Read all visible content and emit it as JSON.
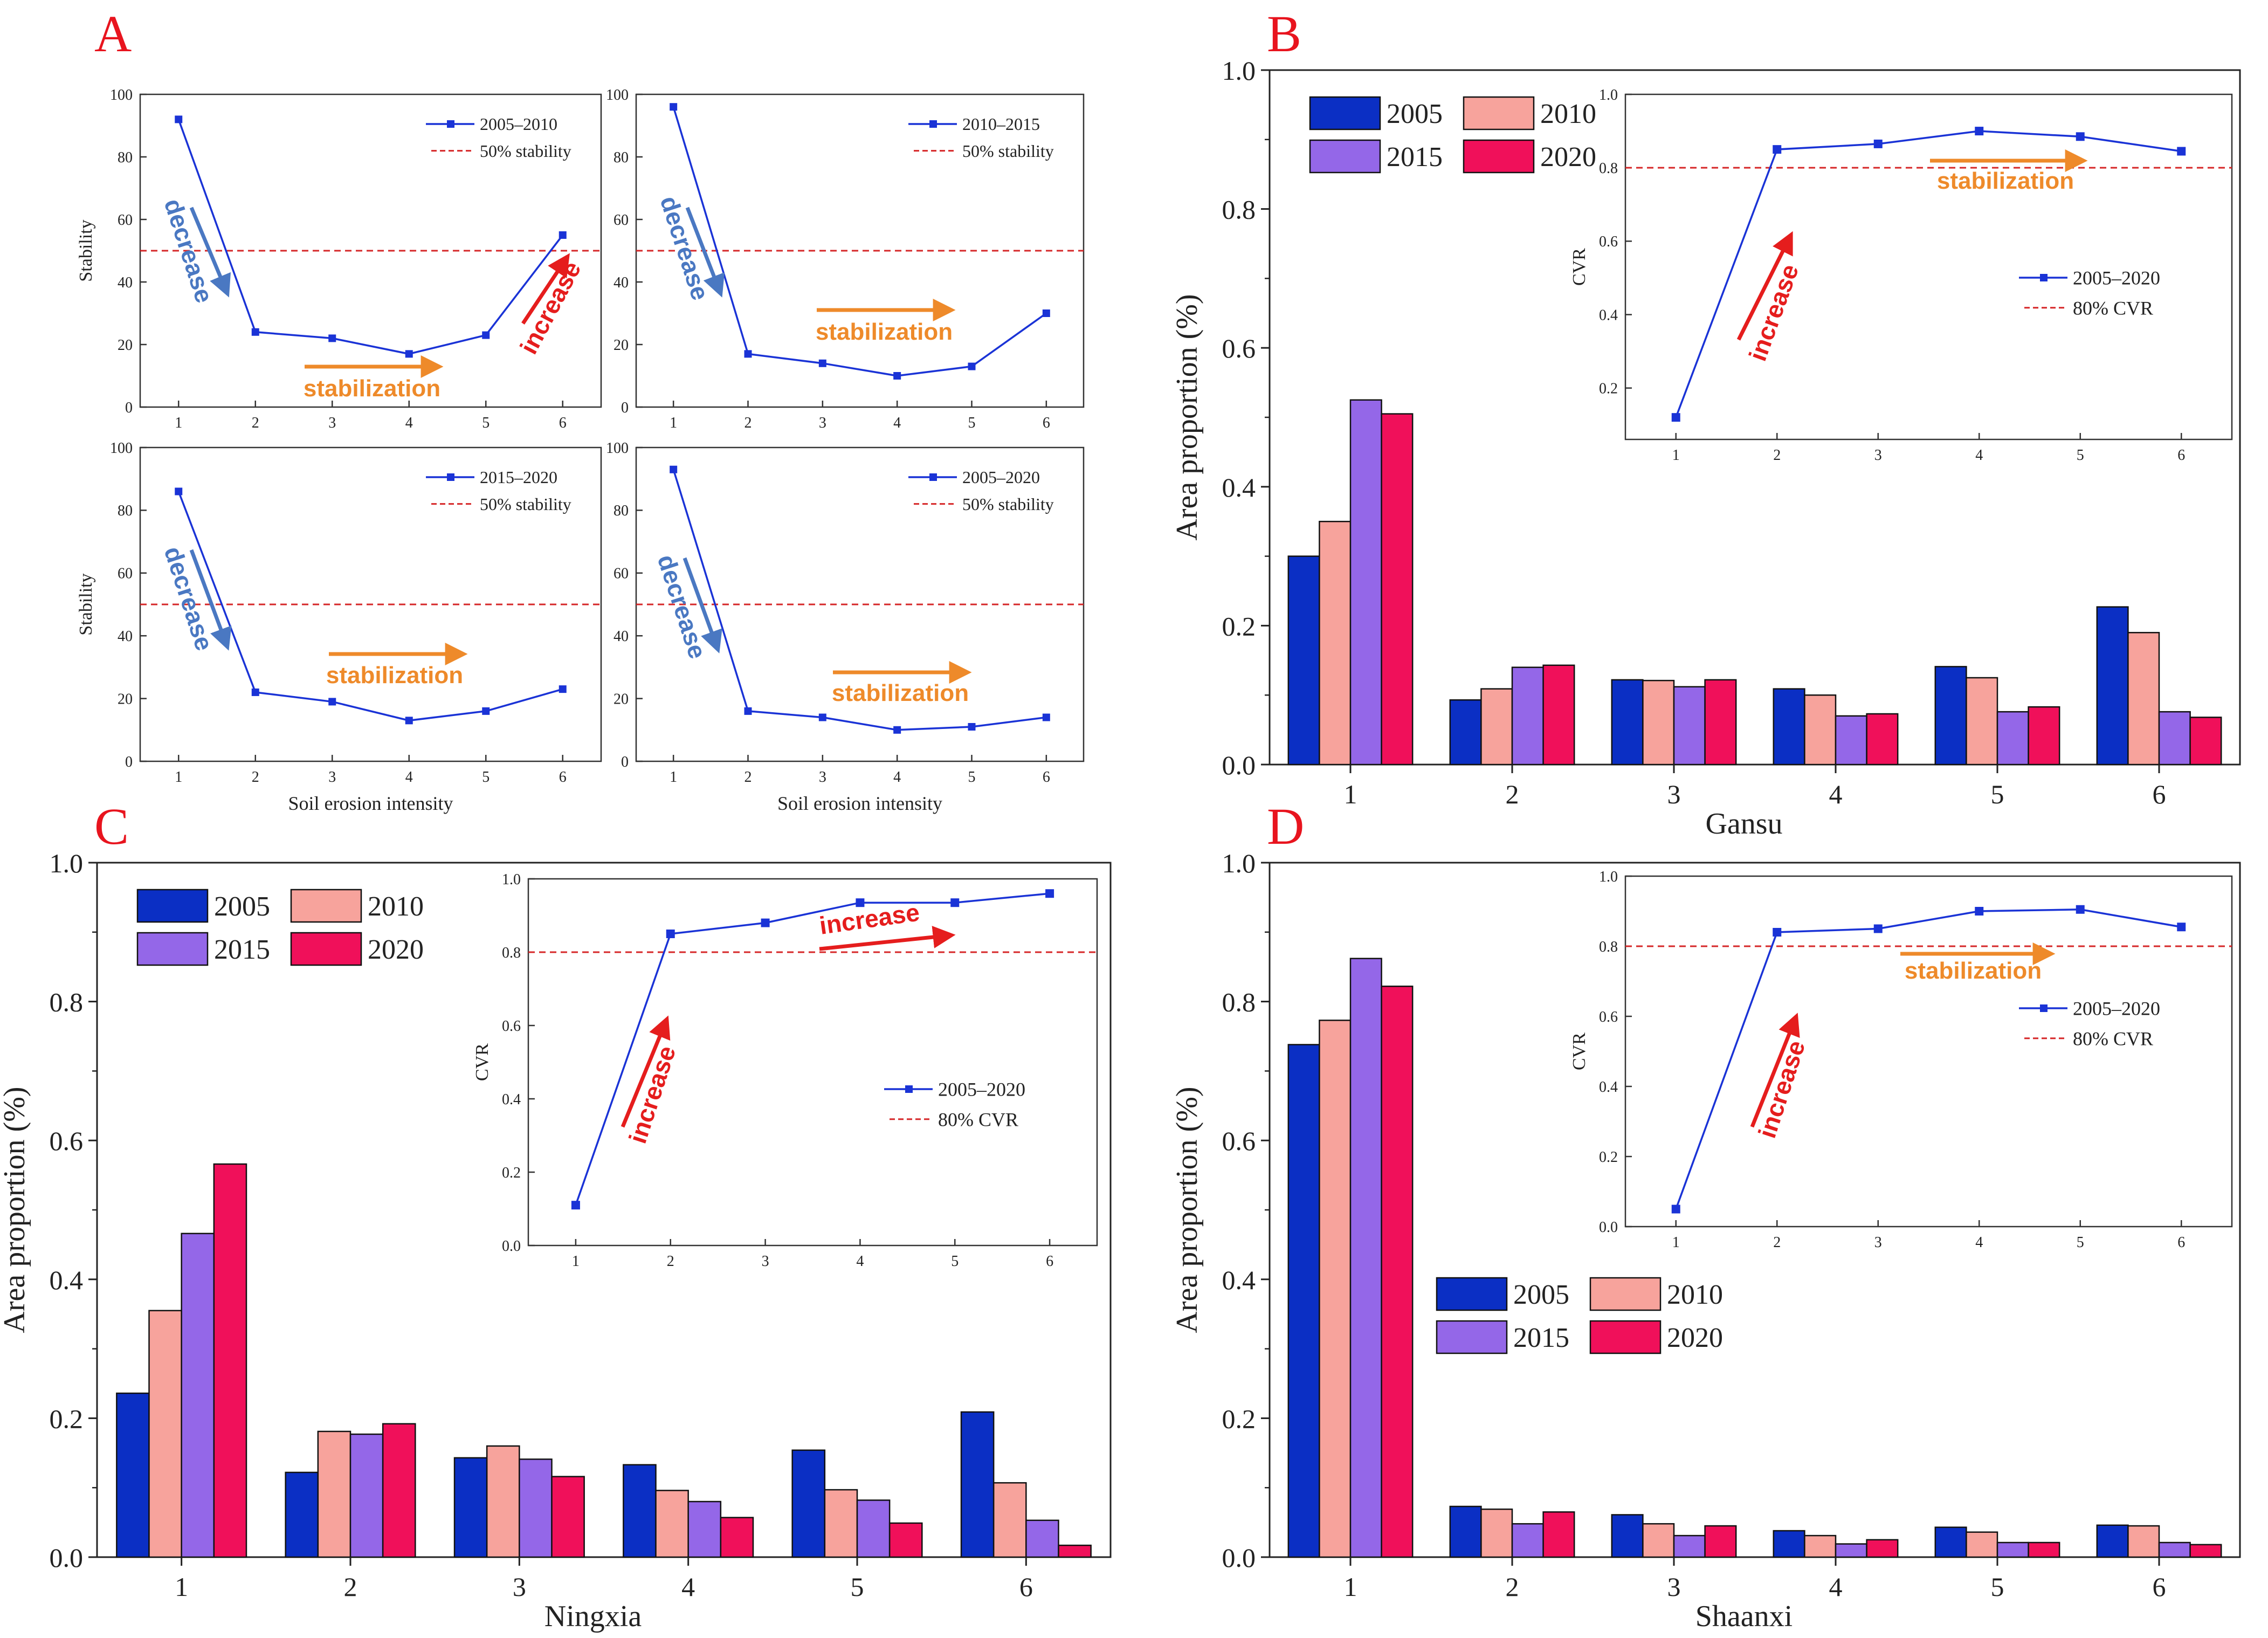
{
  "colors": {
    "s2005": "#0b2fc4",
    "s2010": "#f7a39c",
    "s2015": "#9467e8",
    "s2020": "#f0105a",
    "line": "#1a33d6",
    "ref": "#d62728",
    "panel_letter": "#e8141e",
    "arrow_blue": "#4a78c2",
    "arrow_orange": "#ee8a2a",
    "arrow_red": "#e51d1d"
  },
  "panel_letters": {
    "A": "A",
    "B": "B",
    "C": "C",
    "D": "D"
  },
  "chart_data": [
    {
      "id": "A1",
      "type": "line",
      "panel": "A",
      "x": [
        1,
        2,
        3,
        4,
        5,
        6
      ],
      "y": [
        92,
        24,
        22,
        17,
        23,
        55
      ],
      "series_name": "2005–2010",
      "ref_value": 50,
      "ref_label": "50% stability",
      "ylabel": "Stability",
      "xlabel": "",
      "ylim": [
        0,
        100
      ],
      "yticks": [
        0,
        20,
        40,
        60,
        80,
        100
      ],
      "xticks": [
        "1",
        "2",
        "3",
        "4",
        "5",
        "6"
      ],
      "annotations": [
        "decrease",
        "stabilization",
        "increase"
      ]
    },
    {
      "id": "A2",
      "type": "line",
      "panel": "A",
      "x": [
        1,
        2,
        3,
        4,
        5,
        6
      ],
      "y": [
        96,
        17,
        14,
        10,
        13,
        30
      ],
      "series_name": "2010–2015",
      "ref_value": 50,
      "ref_label": "50% stability",
      "ylabel": "",
      "xlabel": "",
      "ylim": [
        0,
        100
      ],
      "yticks": [
        0,
        20,
        40,
        60,
        80,
        100
      ],
      "xticks": [
        "1",
        "2",
        "3",
        "4",
        "5",
        "6"
      ],
      "annotations": [
        "decrease",
        "stabilization"
      ]
    },
    {
      "id": "A3",
      "type": "line",
      "panel": "A",
      "x": [
        1,
        2,
        3,
        4,
        5,
        6
      ],
      "y": [
        86,
        22,
        19,
        13,
        16,
        23
      ],
      "series_name": "2015–2020",
      "ref_value": 50,
      "ref_label": "50% stability",
      "ylabel": "Stability",
      "xlabel": "Soil erosion intensity",
      "ylim": [
        0,
        100
      ],
      "yticks": [
        0,
        20,
        40,
        60,
        80,
        100
      ],
      "xticks": [
        "1",
        "2",
        "3",
        "4",
        "5",
        "6"
      ],
      "annotations": [
        "decrease",
        "stabilization"
      ]
    },
    {
      "id": "A4",
      "type": "line",
      "panel": "A",
      "x": [
        1,
        2,
        3,
        4,
        5,
        6
      ],
      "y": [
        93,
        16,
        14,
        10,
        11,
        14
      ],
      "series_name": "2005–2020",
      "ref_value": 50,
      "ref_label": "50% stability",
      "ylabel": "",
      "xlabel": "Soil erosion intensity",
      "ylim": [
        0,
        100
      ],
      "yticks": [
        0,
        20,
        40,
        60,
        80,
        100
      ],
      "xticks": [
        "1",
        "2",
        "3",
        "4",
        "5",
        "6"
      ],
      "annotations": [
        "decrease",
        "stabilization"
      ]
    },
    {
      "id": "B",
      "type": "bar",
      "panel": "B",
      "categories": [
        "1",
        "2",
        "3",
        "4",
        "5",
        "6"
      ],
      "series": [
        {
          "name": "2005",
          "values": [
            0.3,
            0.093,
            0.122,
            0.109,
            0.141,
            0.227
          ]
        },
        {
          "name": "2010",
          "values": [
            0.35,
            0.109,
            0.121,
            0.1,
            0.125,
            0.19
          ]
        },
        {
          "name": "2015",
          "values": [
            0.525,
            0.14,
            0.112,
            0.07,
            0.076,
            0.076
          ]
        },
        {
          "name": "2020",
          "values": [
            0.505,
            0.143,
            0.122,
            0.073,
            0.083,
            0.068
          ]
        }
      ],
      "ylabel": "Area proportion (%)",
      "xlabel": "Gansu",
      "ylim": [
        0,
        1
      ],
      "yticks": [
        "0.0",
        "0.2",
        "0.4",
        "0.6",
        "0.8",
        "1.0"
      ],
      "legend": "top-left",
      "inset": {
        "type": "line",
        "x": [
          1,
          2,
          3,
          4,
          5,
          6
        ],
        "y": [
          0.12,
          0.85,
          0.865,
          0.9,
          0.885,
          0.845
        ],
        "series_name": "2005–2020",
        "ref_value": 0.8,
        "ref_label": "80% CVR",
        "ylabel": "CVR",
        "ylim": [
          0.06,
          1.0
        ],
        "yticks": [
          "0.2",
          "0.4",
          "0.6",
          "0.8",
          "1.0"
        ],
        "annotations": [
          "increase",
          "stabilization"
        ]
      }
    },
    {
      "id": "C",
      "type": "bar",
      "panel": "C",
      "categories": [
        "1",
        "2",
        "3",
        "4",
        "5",
        "6"
      ],
      "series": [
        {
          "name": "2005",
          "values": [
            0.236,
            0.122,
            0.143,
            0.133,
            0.154,
            0.209
          ]
        },
        {
          "name": "2010",
          "values": [
            0.355,
            0.181,
            0.16,
            0.096,
            0.097,
            0.107
          ]
        },
        {
          "name": "2015",
          "values": [
            0.466,
            0.177,
            0.141,
            0.08,
            0.082,
            0.053
          ]
        },
        {
          "name": "2020",
          "values": [
            0.566,
            0.192,
            0.116,
            0.057,
            0.049,
            0.017
          ]
        }
      ],
      "ylabel": "Area proportion (%)",
      "xlabel": "Ningxia",
      "ylim": [
        0,
        1
      ],
      "yticks": [
        "0.0",
        "0.2",
        "0.4",
        "0.6",
        "0.8",
        "1.0"
      ],
      "legend": "top-left",
      "inset": {
        "type": "line",
        "x": [
          1,
          2,
          3,
          4,
          5,
          6
        ],
        "y": [
          0.11,
          0.85,
          0.88,
          0.935,
          0.935,
          0.96
        ],
        "series_name": "2005–2020",
        "ref_value": 0.8,
        "ref_label": "80% CVR",
        "ylabel": "CVR",
        "ylim": [
          0.0,
          1.0
        ],
        "yticks": [
          "0.0",
          "0.2",
          "0.4",
          "0.6",
          "0.8",
          "1.0"
        ],
        "annotations": [
          "increase",
          "increase"
        ]
      }
    },
    {
      "id": "D",
      "type": "bar",
      "panel": "D",
      "categories": [
        "1",
        "2",
        "3",
        "4",
        "5",
        "6"
      ],
      "series": [
        {
          "name": "2005",
          "values": [
            0.738,
            0.073,
            0.061,
            0.038,
            0.043,
            0.046
          ]
        },
        {
          "name": "2010",
          "values": [
            0.773,
            0.069,
            0.048,
            0.031,
            0.036,
            0.045
          ]
        },
        {
          "name": "2015",
          "values": [
            0.862,
            0.048,
            0.031,
            0.019,
            0.021,
            0.021
          ]
        },
        {
          "name": "2020",
          "values": [
            0.822,
            0.065,
            0.045,
            0.025,
            0.021,
            0.018
          ]
        }
      ],
      "ylabel": "Area proportion (%)",
      "xlabel": "Shaanxi",
      "ylim": [
        0,
        1
      ],
      "yticks": [
        "0.0",
        "0.2",
        "0.4",
        "0.6",
        "0.8",
        "1.0"
      ],
      "legend": "middle-left",
      "inset": {
        "type": "line",
        "x": [
          1,
          2,
          3,
          4,
          5,
          6
        ],
        "y": [
          0.05,
          0.84,
          0.85,
          0.9,
          0.905,
          0.855
        ],
        "series_name": "2005–2020",
        "ref_value": 0.8,
        "ref_label": "80% CVR",
        "ylabel": "CVR",
        "ylim": [
          0.0,
          1.0
        ],
        "yticks": [
          "0.0",
          "0.2",
          "0.4",
          "0.6",
          "0.8",
          "1.0"
        ],
        "annotations": [
          "increase",
          "stabilization"
        ]
      }
    }
  ]
}
